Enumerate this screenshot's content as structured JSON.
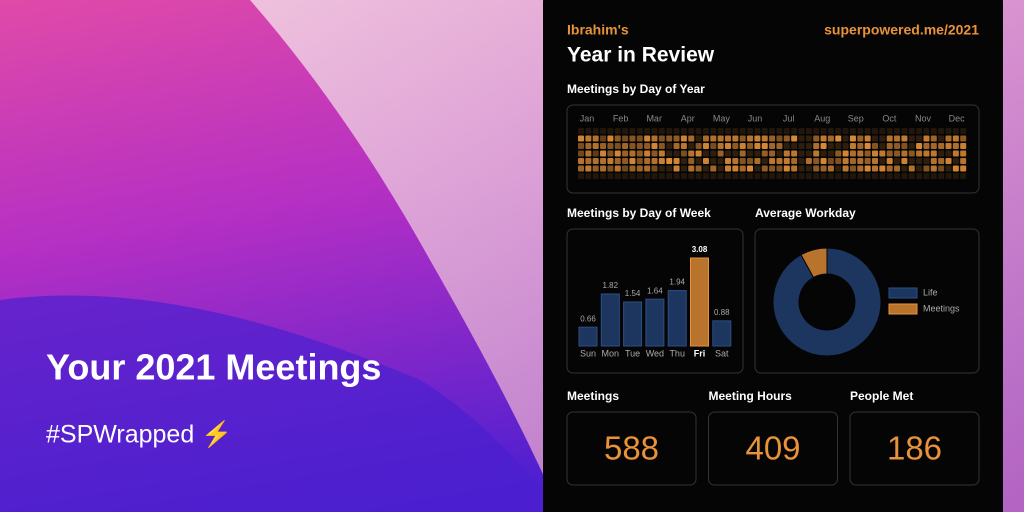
{
  "hero": {
    "title": "Your 2021 Meetings",
    "hashtag": "#SPWrapped ⚡"
  },
  "card": {
    "owner": "Ibrahim's",
    "title": "Year in Review",
    "link": "superpowered.me/2021",
    "heatmap": {
      "title": "Meetings by Day of Year",
      "months": [
        "Jan",
        "Feb",
        "Mar",
        "Apr",
        "May",
        "Jun",
        "Jul",
        "Aug",
        "Sep",
        "Oct",
        "Nov",
        "Dec"
      ]
    },
    "week_chart": {
      "title": "Meetings by Day of Week",
      "chart_data": {
        "type": "bar",
        "categories": [
          "Sun",
          "Mon",
          "Tue",
          "Wed",
          "Thu",
          "Fri",
          "Sat"
        ],
        "values": [
          0.66,
          1.82,
          1.54,
          1.64,
          1.94,
          3.08,
          0.88
        ],
        "color": "#1d3660",
        "highlight": "Fri",
        "highlight_color": "#b8742c"
      }
    },
    "workday": {
      "title": "Average Workday",
      "chart_data": {
        "type": "pie",
        "series": [
          {
            "name": "Life",
            "color": "#1d3660",
            "values": [
              92
            ]
          },
          {
            "name": "Meetings",
            "color": "#b8742c",
            "values": [
              8
            ]
          }
        ]
      }
    },
    "stats": [
      {
        "label": "Meetings",
        "value": 588
      },
      {
        "label": "Meeting Hours",
        "value": 409
      },
      {
        "label": "People Met",
        "value": 186
      }
    ]
  }
}
